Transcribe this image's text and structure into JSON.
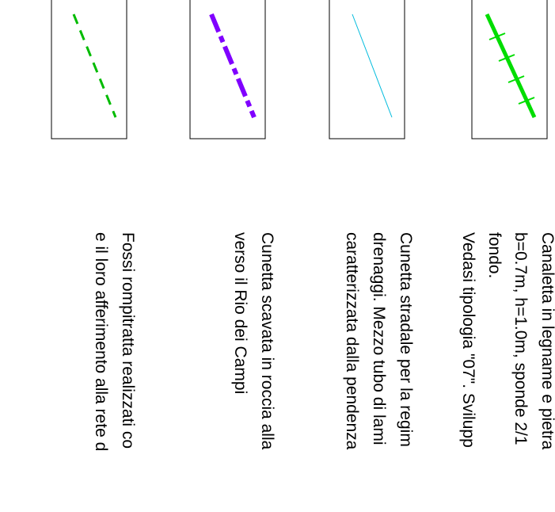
{
  "legend": {
    "items": [
      {
        "symbol": "dashed-green-line",
        "color": "#00bb00",
        "lines": [
          "Fossi rompitratta realizzati co",
          "e il loro afferimento alla rete d"
        ]
      },
      {
        "symbol": "dash-dot-purple-line",
        "color": "#8000ff",
        "lines": [
          "Cunetta scavata in roccia alla",
          "verso il  Rio dei Campi"
        ]
      },
      {
        "symbol": "thin-cyan-line",
        "color": "#00bbdd",
        "lines": [
          "Cunetta stradale per la regim",
          "drenaggi. Mezzo tubo di lami",
          "caratterizzata dalla pendenza"
        ]
      },
      {
        "symbol": "green-line-with-cross-ticks",
        "color": "#00dd00",
        "lines": [
          "Canaletta in legname e pietra",
          "b=0.7m, h=1.0m, sponde 2/1",
          "fondo.",
          "Vedasi tipologia \"07\". Svilupp"
        ]
      }
    ]
  }
}
